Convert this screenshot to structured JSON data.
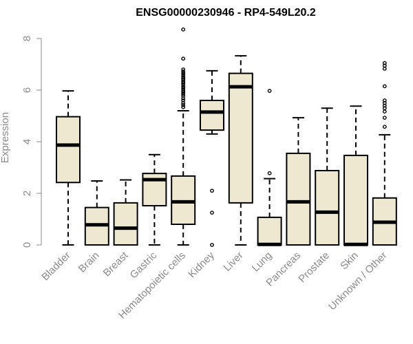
{
  "chart_data": {
    "type": "boxplot",
    "title": "ENSG00000230946 - RP4-549L20.2",
    "xlabel": "",
    "ylabel": "Expression",
    "ylim": [
      0,
      8.4
    ],
    "yticks": [
      0,
      2,
      4,
      6,
      8
    ],
    "grid": false,
    "box_color": "#EEE8D0",
    "categories": [
      "Bladder",
      "Brain",
      "Breast",
      "Gastric",
      "Hematopoietic cells",
      "Kidney",
      "Liver",
      "Lung",
      "Pancreas",
      "Prostate",
      "Skin",
      "Unknown / Other"
    ],
    "series": [
      {
        "name": "Bladder",
        "whisker_low": 0,
        "q1": 2.42,
        "median": 3.87,
        "q3": 4.97,
        "whisker_high": 5.97,
        "outliers": []
      },
      {
        "name": "Brain",
        "whisker_low": 0,
        "q1": 0,
        "median": 0.78,
        "q3": 1.45,
        "whisker_high": 2.48,
        "outliers": []
      },
      {
        "name": "Breast",
        "whisker_low": 0,
        "q1": 0,
        "median": 0.65,
        "q3": 1.63,
        "whisker_high": 2.52,
        "outliers": []
      },
      {
        "name": "Gastric",
        "whisker_low": 0,
        "q1": 1.52,
        "median": 2.53,
        "q3": 2.77,
        "whisker_high": 3.5,
        "outliers": []
      },
      {
        "name": "Hematopoietic cells",
        "whisker_low": 0,
        "q1": 0.8,
        "median": 1.67,
        "q3": 2.67,
        "whisker_high": 5.2,
        "outliers": [
          8.35,
          7.22,
          6.8,
          6.72,
          6.65,
          6.58,
          6.5,
          6.45,
          6.4,
          6.33,
          6.27,
          6.2,
          6.12,
          6.05,
          5.98,
          5.92,
          5.85,
          5.78,
          5.68,
          5.6,
          5.5,
          5.42,
          5.34
        ]
      },
      {
        "name": "Kidney",
        "whisker_low": 4.3,
        "q1": 4.45,
        "median": 5.15,
        "q3": 5.6,
        "whisker_high": 6.75,
        "outliers": [
          2.1,
          1.25,
          0
        ]
      },
      {
        "name": "Liver",
        "whisker_low": 0,
        "q1": 1.63,
        "median": 6.13,
        "q3": 6.65,
        "whisker_high": 7.33,
        "outliers": []
      },
      {
        "name": "Lung",
        "whisker_low": 0,
        "q1": 0,
        "median": 0.02,
        "q3": 1.07,
        "whisker_high": 2.57,
        "outliers": [
          5.97,
          2.78
        ]
      },
      {
        "name": "Pancreas",
        "whisker_low": 0,
        "q1": 0,
        "median": 1.67,
        "q3": 3.55,
        "whisker_high": 4.93,
        "outliers": []
      },
      {
        "name": "Prostate",
        "whisker_low": 0,
        "q1": 0,
        "median": 1.27,
        "q3": 2.88,
        "whisker_high": 5.3,
        "outliers": []
      },
      {
        "name": "Skin",
        "whisker_low": 0,
        "q1": 0,
        "median": 0.02,
        "q3": 3.47,
        "whisker_high": 5.38,
        "outliers": []
      },
      {
        "name": "Unknown / Other",
        "whisker_low": 0,
        "q1": 0,
        "median": 0.88,
        "q3": 1.82,
        "whisker_high": 4.27,
        "outliers": [
          7.05,
          6.95,
          6.83,
          6.15,
          5.6,
          5.5,
          5.4,
          5.3,
          5.17,
          4.93,
          4.58
        ]
      }
    ]
  }
}
